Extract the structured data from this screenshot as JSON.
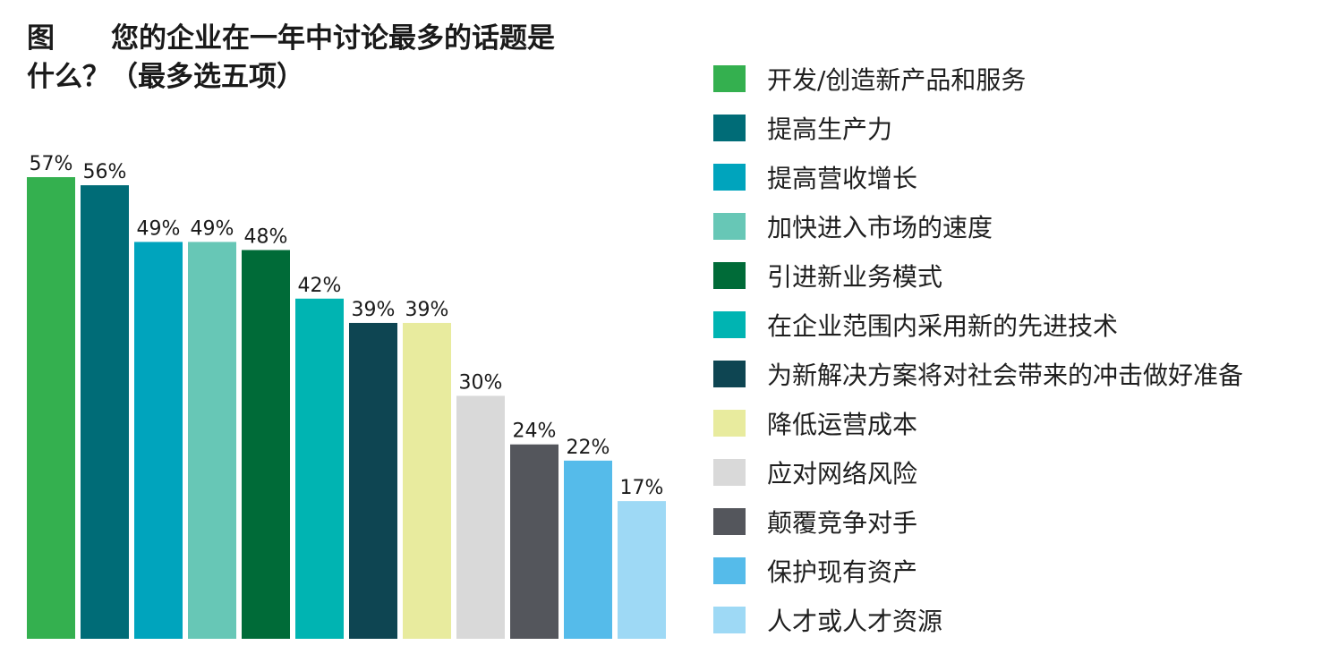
{
  "title": {
    "prefix": "图",
    "line1": "您的企业在一年中讨论最多的话题是",
    "line2": "什么？（最多选五项）"
  },
  "chart_data": {
    "type": "bar",
    "categories": [
      "开发/创造新产品和服务",
      "提高生产力",
      "提高营收增长",
      "加快进入市场的速度",
      "引进新业务模式",
      "在企业范围内采用新的先进技术",
      "为新解决方案将对社会带来的冲击做好准备",
      "降低运营成本",
      "应对网络风险",
      "颠覆竞争对手",
      "保护现有资产",
      "人才或人才资源"
    ],
    "values": [
      57,
      56,
      49,
      49,
      48,
      42,
      39,
      39,
      30,
      24,
      22,
      17
    ],
    "value_labels": [
      "57%",
      "56%",
      "49%",
      "49%",
      "48%",
      "42%",
      "39%",
      "39%",
      "30%",
      "24%",
      "22%",
      "17%"
    ],
    "colors": [
      "#34b04f",
      "#006c77",
      "#00a4bd",
      "#67c7b6",
      "#006b38",
      "#00b4b2",
      "#0e4552",
      "#e8eb9e",
      "#d9d9d9",
      "#54565c",
      "#55bbea",
      "#9ed9f5"
    ],
    "ylim": [
      0,
      57
    ],
    "grid": false,
    "legend_position": "right"
  }
}
